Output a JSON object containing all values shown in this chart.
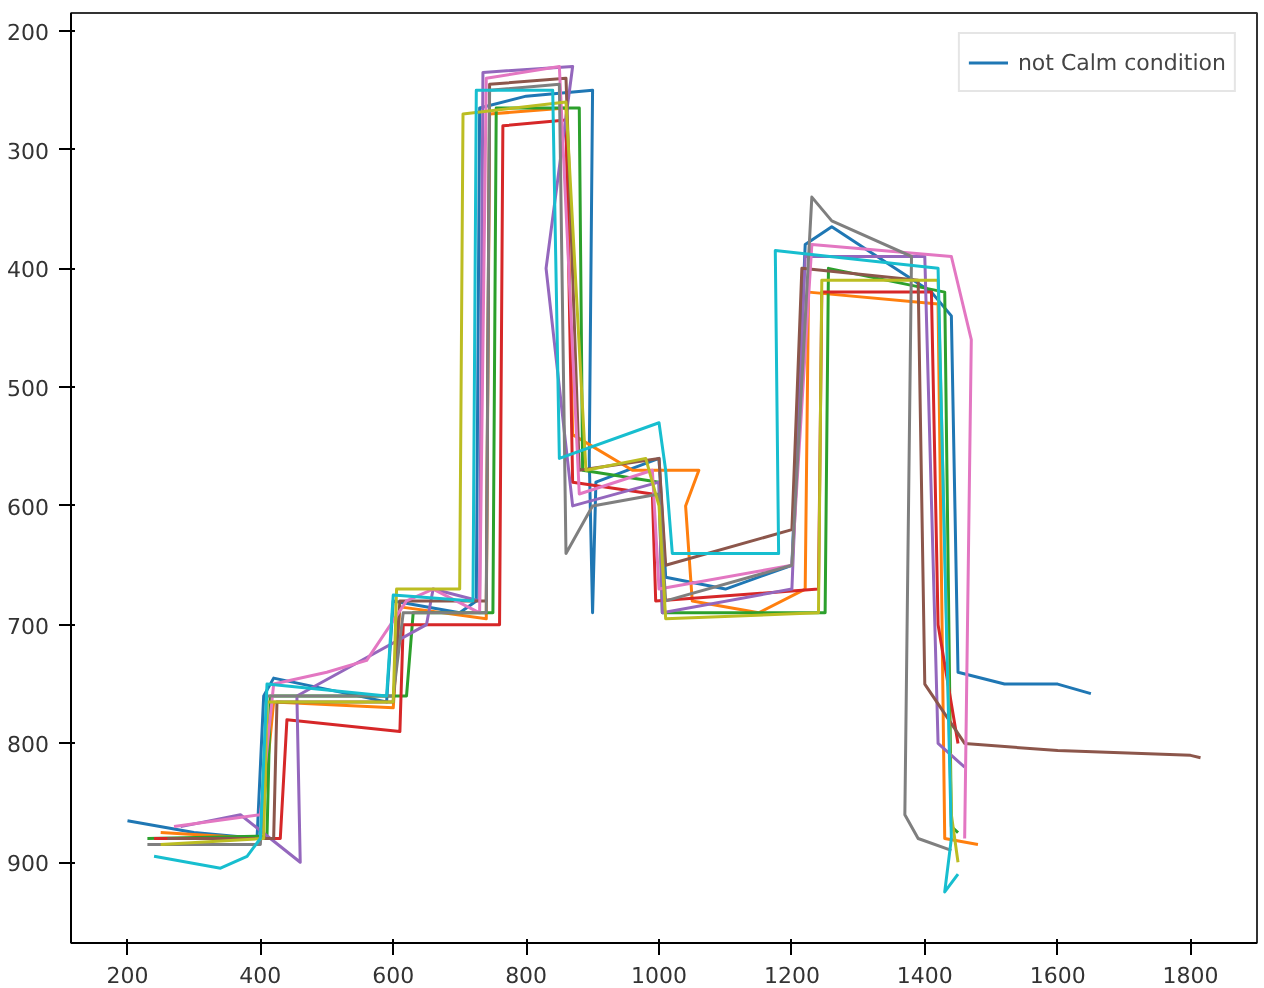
{
  "chart_data": {
    "type": "line",
    "xlim": [
      115,
      1900
    ],
    "ylim": [
      968,
      185
    ],
    "xticks": [
      200,
      400,
      600,
      800,
      1000,
      1200,
      1400,
      1600,
      1800
    ],
    "yticks": [
      200,
      300,
      400,
      500,
      600,
      700,
      800,
      900
    ],
    "grid": false,
    "legend": "top right",
    "marker": "none",
    "line_style": "solid",
    "series": [
      {
        "name": "not Calm condition",
        "color": "#1f77b4",
        "x": [
          200,
          300,
          395,
          405,
          420,
          590,
          600,
          700,
          725,
          730,
          800,
          900,
          895,
          900,
          905,
          1000,
          1010,
          1100,
          1200,
          1220,
          1260,
          1410,
          1440,
          1450,
          1520,
          1600,
          1650
        ],
        "values": [
          865,
          875,
          880,
          760,
          745,
          765,
          680,
          690,
          680,
          265,
          255,
          250,
          560,
          690,
          580,
          560,
          660,
          670,
          650,
          380,
          365,
          420,
          440,
          740,
          750,
          750,
          758
        ]
      },
      {
        "color": "#ff7f0e",
        "x": [
          250,
          400,
          420,
          600,
          610,
          740,
          745,
          860,
          870,
          960,
          1060,
          1040,
          1050,
          1150,
          1220,
          1225,
          1420,
          1430,
          1480
        ],
        "values": [
          875,
          880,
          765,
          770,
          685,
          695,
          270,
          265,
          540,
          570,
          570,
          600,
          680,
          690,
          670,
          420,
          430,
          880,
          885
        ]
      },
      {
        "color": "#2ca02c",
        "x": [
          230,
          410,
          415,
          620,
          630,
          750,
          755,
          880,
          885,
          1000,
          1005,
          1250,
          1255,
          1430,
          1440,
          1450
        ],
        "values": [
          880,
          878,
          760,
          760,
          690,
          690,
          265,
          265,
          570,
          580,
          690,
          690,
          400,
          420,
          870,
          875
        ]
      },
      {
        "color": "#d62728",
        "x": [
          240,
          430,
          440,
          610,
          615,
          760,
          765,
          860,
          870,
          990,
          995,
          1240,
          1245,
          1410,
          1420,
          1450
        ],
        "values": [
          880,
          880,
          780,
          790,
          700,
          700,
          280,
          275,
          580,
          590,
          680,
          670,
          420,
          420,
          700,
          800
        ]
      },
      {
        "color": "#9467bd",
        "x": [
          280,
          370,
          460,
          455,
          520,
          650,
          660,
          730,
          735,
          870,
          830,
          870,
          1000,
          1005,
          1200,
          1220,
          1400,
          1420,
          1460
        ],
        "values": [
          870,
          860,
          900,
          760,
          740,
          700,
          670,
          680,
          235,
          230,
          400,
          600,
          580,
          690,
          670,
          390,
          390,
          800,
          820
        ]
      },
      {
        "color": "#8c564b",
        "x": [
          260,
          420,
          425,
          600,
          610,
          740,
          745,
          860,
          880,
          1000,
          1010,
          1200,
          1215,
          1390,
          1400,
          1460,
          1600,
          1800,
          1815
        ],
        "values": [
          880,
          880,
          765,
          765,
          680,
          680,
          245,
          240,
          570,
          560,
          650,
          620,
          400,
          410,
          750,
          800,
          806,
          810,
          812
        ]
      },
      {
        "color": "#e377c2",
        "x": [
          270,
          400,
          420,
          500,
          560,
          620,
          660,
          730,
          740,
          850,
          880,
          990,
          1000,
          1200,
          1230,
          1440,
          1470,
          1460
        ],
        "values": [
          870,
          860,
          750,
          740,
          730,
          680,
          670,
          690,
          240,
          230,
          590,
          570,
          670,
          650,
          380,
          390,
          460,
          880
        ]
      },
      {
        "color": "#7f7f7f",
        "x": [
          230,
          400,
          410,
          600,
          615,
          740,
          745,
          850,
          860,
          900,
          1000,
          1010,
          1200,
          1230,
          1260,
          1380,
          1370,
          1390,
          1440
        ],
        "values": [
          885,
          885,
          760,
          760,
          690,
          690,
          250,
          245,
          640,
          600,
          590,
          680,
          650,
          340,
          360,
          390,
          860,
          880,
          890
        ]
      },
      {
        "color": "#bcbd22",
        "x": [
          250,
          405,
          410,
          600,
          605,
          700,
          705,
          860,
          890,
          980,
          1000,
          1010,
          1240,
          1245,
          1420,
          1440,
          1450
        ],
        "values": [
          885,
          880,
          765,
          765,
          670,
          670,
          270,
          260,
          570,
          560,
          600,
          695,
          690,
          410,
          410,
          860,
          900
        ]
      },
      {
        "color": "#17becf",
        "x": [
          240,
          340,
          380,
          400,
          410,
          590,
          600,
          720,
          725,
          840,
          850,
          1000,
          1010,
          1020,
          1180,
          1175,
          1420,
          1440,
          1430,
          1450
        ],
        "values": [
          895,
          905,
          895,
          880,
          750,
          760,
          675,
          680,
          250,
          250,
          560,
          530,
          570,
          640,
          640,
          385,
          400,
          880,
          925,
          910
        ]
      }
    ]
  }
}
